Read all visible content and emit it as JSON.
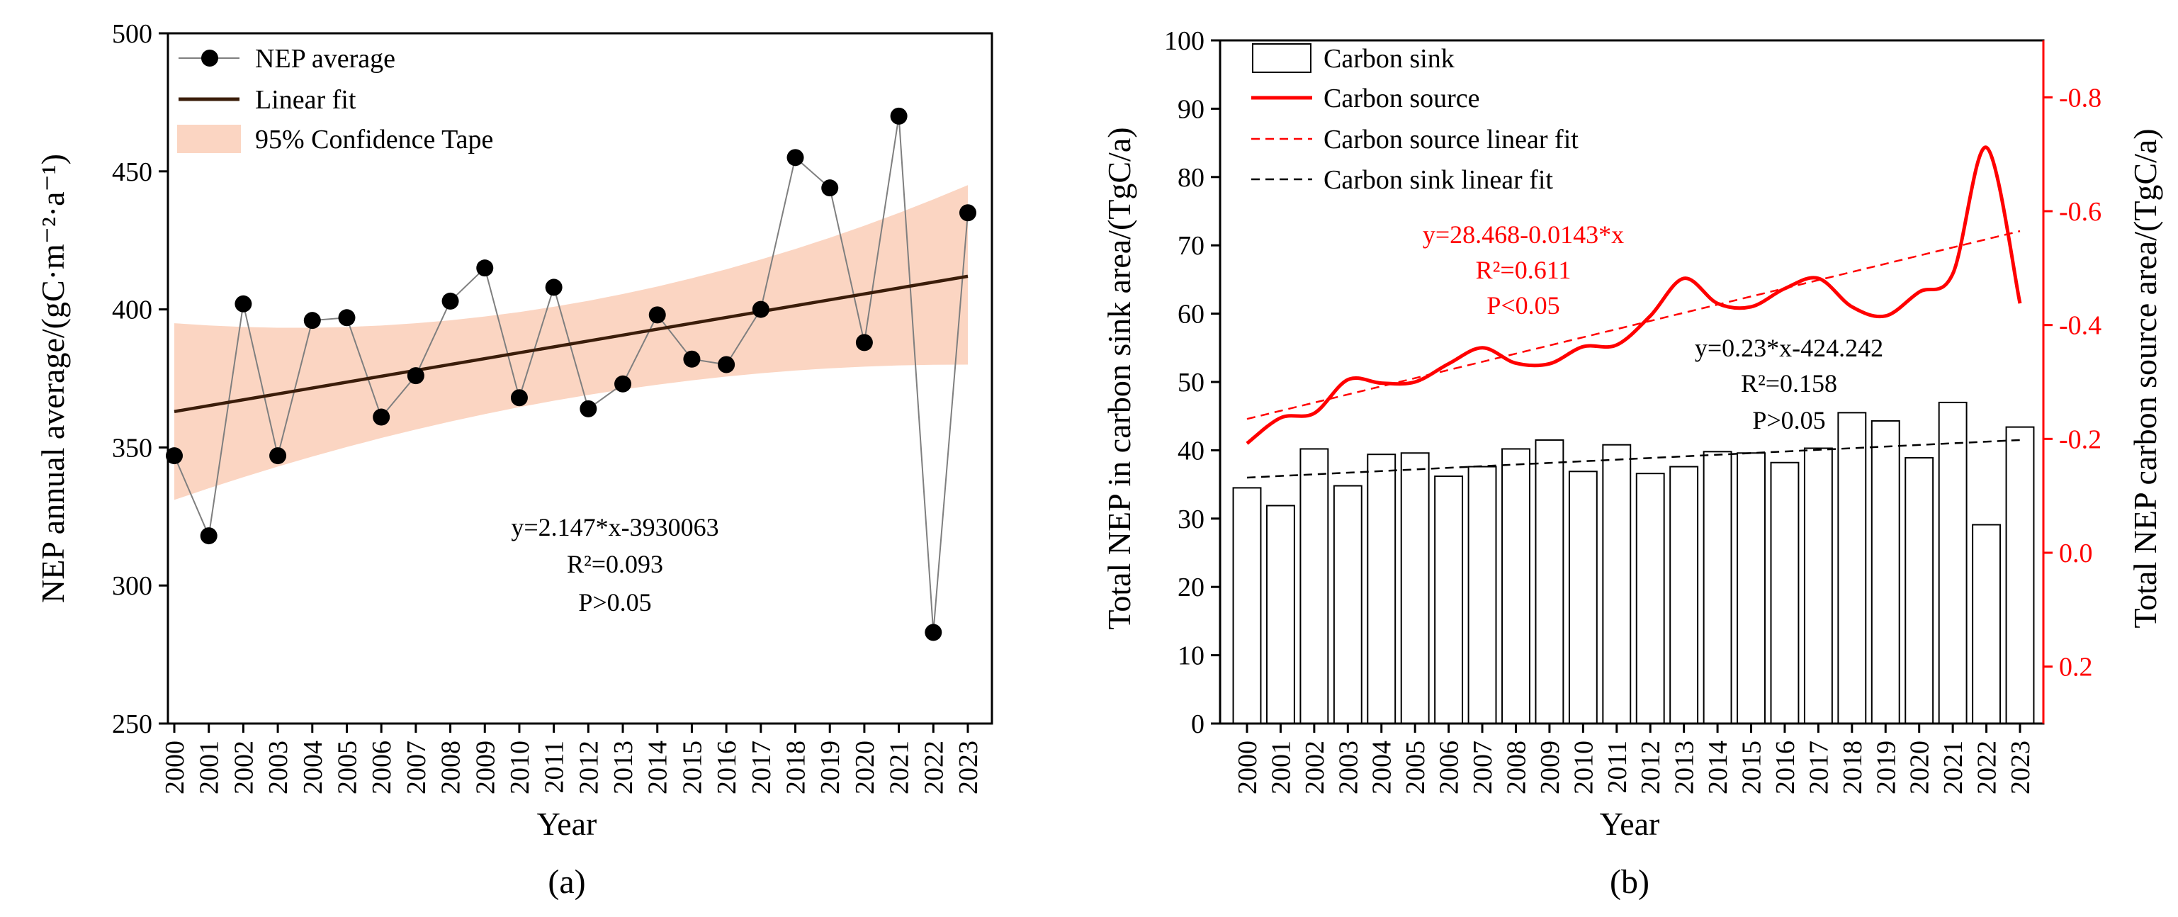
{
  "chart_data": [
    {
      "panel": "(a)",
      "type": "line",
      "xlabel": "Year",
      "ylabel": "NEP annual average/(gC·m⁻²·a⁻¹)",
      "ylim": [
        250,
        500
      ],
      "yticks": [
        250,
        300,
        350,
        400,
        450,
        500
      ],
      "categories": [
        "2000",
        "2001",
        "2002",
        "2003",
        "2004",
        "2005",
        "2006",
        "2007",
        "2008",
        "2009",
        "2010",
        "2011",
        "2012",
        "2013",
        "2014",
        "2015",
        "2016",
        "2017",
        "2018",
        "2019",
        "2020",
        "2021",
        "2022",
        "2023"
      ],
      "series": [
        {
          "name": "NEP average",
          "values": [
            347,
            318,
            402,
            347,
            396,
            397,
            361,
            376,
            403,
            415,
            368,
            408,
            364,
            373,
            398,
            382,
            380,
            400,
            455,
            444,
            388,
            470,
            283,
            435
          ]
        }
      ],
      "fit": {
        "name": "Linear fit",
        "start": 363,
        "end": 412
      },
      "band": {
        "name": "95% Confidence Tape",
        "upper_start": 395,
        "upper_mid": 402,
        "upper_end": 445,
        "lower_start": 331,
        "lower_mid": 368,
        "lower_end": 380
      },
      "annotation": [
        "y=2.147*x-3930063",
        "R²=0.093",
        "P>0.05"
      ],
      "colors": {
        "points": "#000000",
        "band": "#fbd5c2",
        "fit": "#3b1d0a",
        "line": "#7f7f7f"
      }
    },
    {
      "panel": "(b)",
      "type": "bar",
      "xlabel": "Year",
      "ylabel": "Total NEP in carbon sink area/(TgC/a)",
      "y2label": "Total NEP carbon source area/(TgC/a)",
      "ylim": [
        0,
        100
      ],
      "yticks": [
        0,
        10,
        20,
        30,
        40,
        50,
        60,
        70,
        80,
        90,
        100
      ],
      "y2lim": [
        0.3,
        -0.9
      ],
      "y2ticks": [
        "0.2",
        "0.0",
        "-0.2",
        "-0.4",
        "-0.6",
        "-0.8"
      ],
      "categories": [
        "2000",
        "2001",
        "2002",
        "2003",
        "2004",
        "2005",
        "2006",
        "2007",
        "2008",
        "2009",
        "2010",
        "2011",
        "2012",
        "2013",
        "2014",
        "2015",
        "2016",
        "2017",
        "2018",
        "2019",
        "2020",
        "2021",
        "2022",
        "2023"
      ],
      "series": [
        {
          "name": "Carbon sink",
          "type": "bar",
          "values": [
            34.5,
            31.9,
            40.2,
            34.8,
            39.4,
            39.6,
            36.2,
            37.6,
            40.2,
            41.5,
            36.9,
            40.8,
            36.6,
            37.6,
            39.8,
            39.6,
            38.2,
            40.3,
            45.5,
            44.3,
            38.9,
            47.0,
            29.1,
            43.4
          ]
        },
        {
          "name": "Carbon source",
          "type": "line",
          "axis": "right",
          "values": [
            -0.192,
            -0.237,
            -0.245,
            -0.304,
            -0.298,
            -0.3,
            -0.332,
            -0.36,
            -0.333,
            -0.332,
            -0.362,
            -0.365,
            -0.416,
            -0.482,
            -0.438,
            -0.432,
            -0.464,
            -0.482,
            -0.432,
            -0.416,
            -0.458,
            -0.49,
            -0.712,
            -0.438
          ]
        },
        {
          "name": "Carbon source linear fit",
          "type": "line",
          "axis": "right",
          "start": -0.235,
          "end": -0.565
        },
        {
          "name": "Carbon sink linear fit",
          "type": "line",
          "start": 36.0,
          "end": 41.5
        }
      ],
      "annotation_source": [
        "y=28.468-0.0143*x",
        "R²=0.611",
        "P<0.05"
      ],
      "annotation_sink": [
        "y=0.23*x-424.242",
        "R²=0.158",
        "P>0.05"
      ],
      "colors": {
        "source": "#ff0000",
        "sink_fit": "#000000",
        "bar_fill": "#ffffff",
        "bar_edge": "#000000"
      }
    }
  ]
}
